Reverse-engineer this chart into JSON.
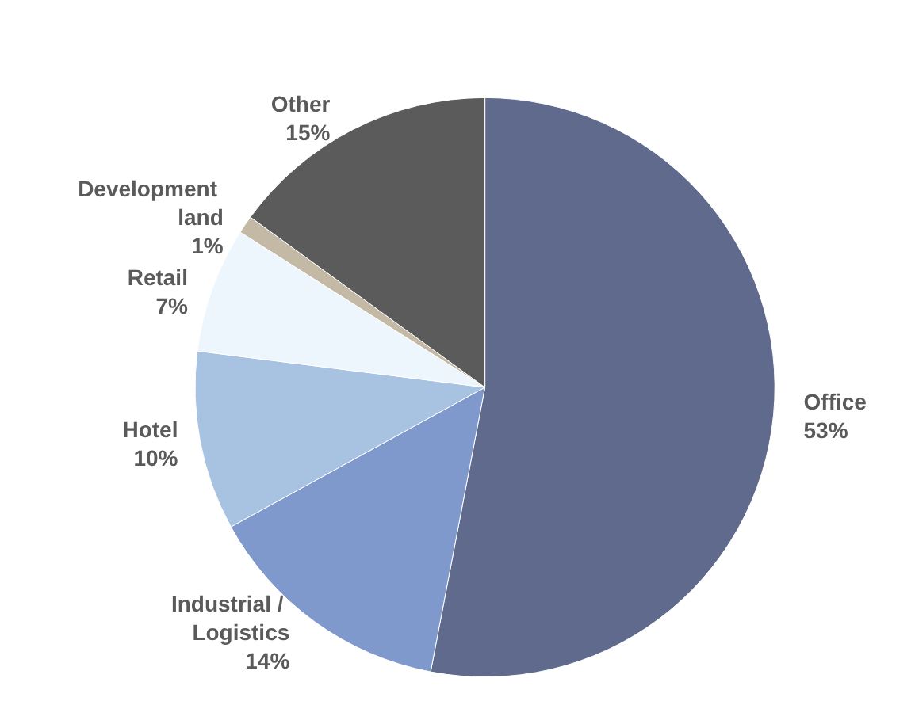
{
  "chart_data": {
    "type": "pie",
    "categories": [
      "Office",
      "Industrial / Logistics",
      "Hotel",
      "Retail",
      "Development land",
      "Other"
    ],
    "values": [
      53,
      14,
      10,
      7,
      1,
      15
    ],
    "value_labels": [
      "53%",
      "14%",
      "10%",
      "7%",
      "1%",
      "15%"
    ],
    "colors": [
      "#5f6a8c",
      "#7f99cc",
      "#a8c2e2",
      "#eef6fd",
      "#c4b9a5",
      "#5b5b5b"
    ],
    "legend": false
  }
}
